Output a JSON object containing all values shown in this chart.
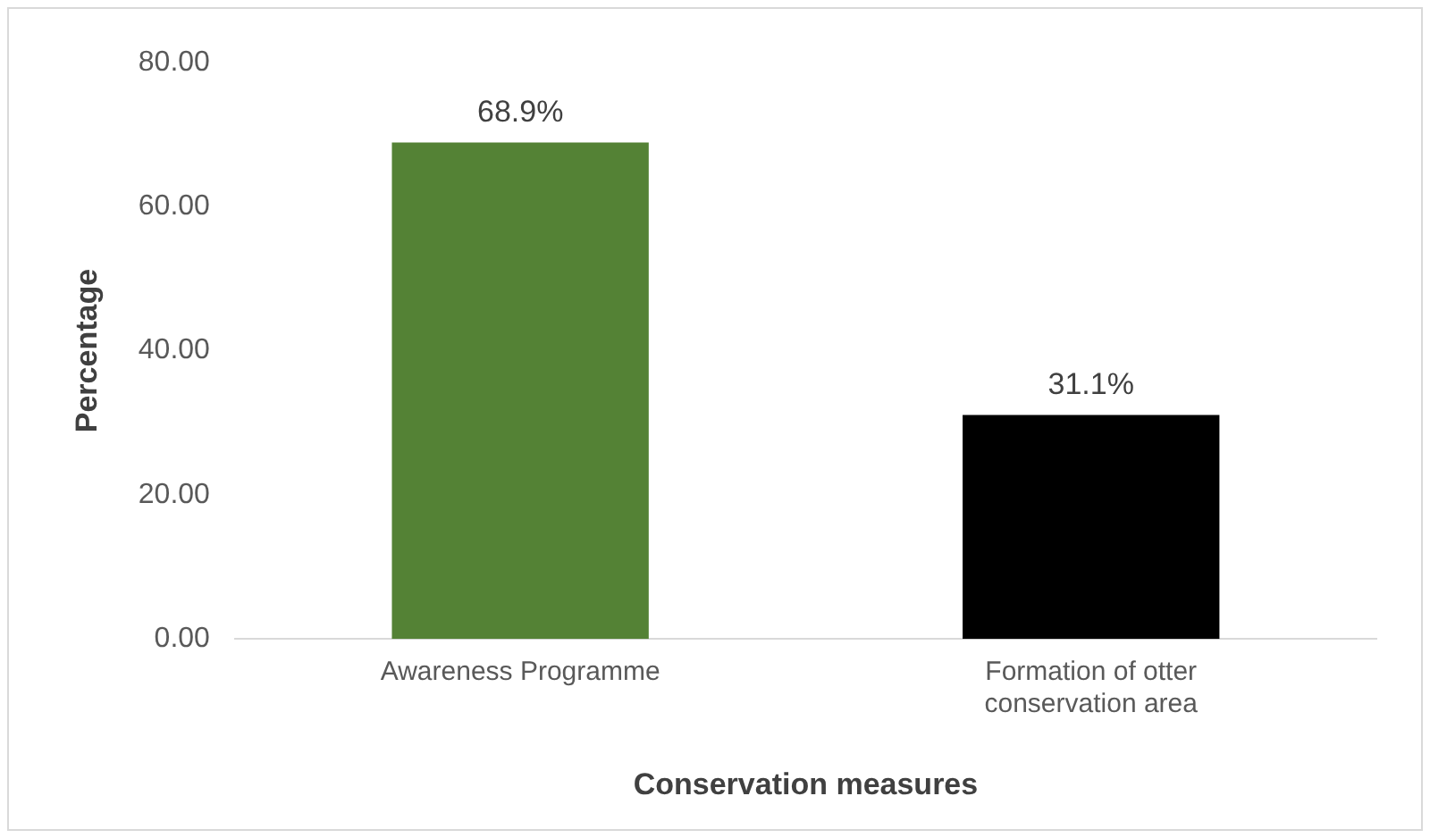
{
  "chart_data": {
    "type": "bar",
    "xlabel": "Conservation measures",
    "ylabel": "Percentage",
    "categories": [
      "Awareness Programme",
      "Formation of otter conservation area"
    ],
    "values": [
      68.9,
      31.1
    ],
    "colors": [
      "#548235",
      "#000000"
    ],
    "value_labels": [
      "68.9%",
      "31.1%"
    ],
    "ylim": [
      0,
      80
    ],
    "yticks": [
      {
        "value": 0,
        "label": "0.00"
      },
      {
        "value": 20,
        "label": "20.00"
      },
      {
        "value": 40,
        "label": "40.00"
      },
      {
        "value": 60,
        "label": "60.00"
      },
      {
        "value": 80,
        "label": "80.00"
      }
    ],
    "grid": false,
    "legend": false
  }
}
